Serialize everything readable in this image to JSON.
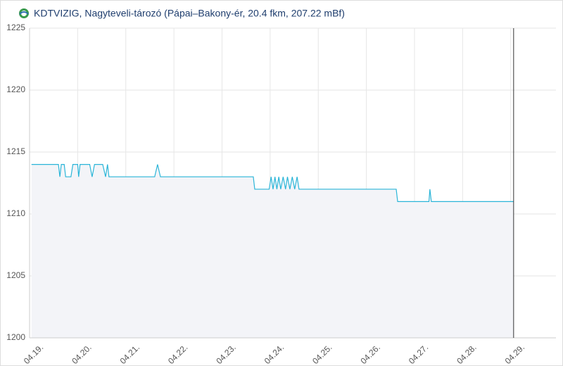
{
  "chart_data": {
    "type": "line",
    "title": "KDTVIZIG, Nagyteveli-tározó (Pápai–Bakony-ér, 20.4 fkm, 207.22 mBf)",
    "ylim": [
      1200,
      1225
    ],
    "yticks": [
      1200,
      1205,
      1210,
      1215,
      1220,
      1225
    ],
    "xlim": [
      0,
      10.94
    ],
    "xticks": [
      {
        "value": 0,
        "label": "04.19."
      },
      {
        "value": 1,
        "label": "04.20."
      },
      {
        "value": 2,
        "label": "04.21."
      },
      {
        "value": 3,
        "label": "04.22."
      },
      {
        "value": 4,
        "label": "04.23."
      },
      {
        "value": 5,
        "label": "04.24."
      },
      {
        "value": 6,
        "label": "04.25."
      },
      {
        "value": 7,
        "label": "04.26."
      },
      {
        "value": 8,
        "label": "04.27."
      },
      {
        "value": 9,
        "label": "04.28."
      },
      {
        "value": 10,
        "label": "04.29."
      }
    ],
    "grid": true,
    "marker_x": 10.06,
    "series": [
      {
        "color": "#2bb5d8",
        "fill": "#f3f4f8",
        "x": [
          0.04,
          0.6,
          0.63,
          0.66,
          0.72,
          0.75,
          0.86,
          0.9,
          1.0,
          1.02,
          1.05,
          1.25,
          1.3,
          1.35,
          1.52,
          1.58,
          1.62,
          1.65,
          2.6,
          2.66,
          2.72,
          4.65,
          4.68,
          4.98,
          5.02,
          5.06,
          5.1,
          5.14,
          5.18,
          5.22,
          5.27,
          5.32,
          5.36,
          5.41,
          5.46,
          5.51,
          5.56,
          5.6,
          7.62,
          7.65,
          8.3,
          8.32,
          8.35,
          10.06
        ],
        "values": [
          1214,
          1214,
          1213,
          1214,
          1214,
          1213,
          1213,
          1214,
          1214,
          1213,
          1214,
          1214,
          1213,
          1214,
          1214,
          1213,
          1214,
          1213,
          1213,
          1214,
          1213,
          1213,
          1212,
          1212,
          1213,
          1212,
          1213,
          1212,
          1213,
          1212,
          1213,
          1212,
          1213,
          1212,
          1213,
          1212,
          1213,
          1212,
          1212,
          1211,
          1211,
          1212,
          1211,
          1211
        ]
      }
    ]
  }
}
